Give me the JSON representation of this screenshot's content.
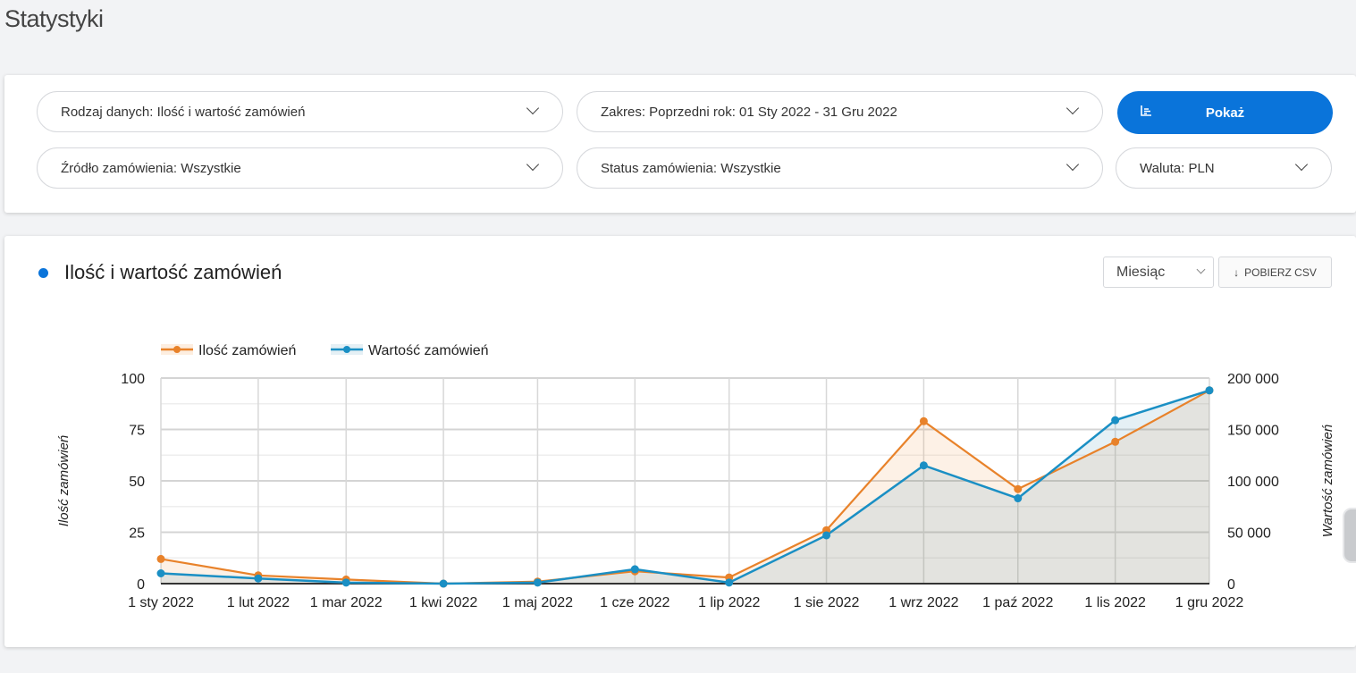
{
  "page": {
    "title": "Statystyki"
  },
  "filters": {
    "data_type": "Rodzaj danych: Ilość i wartość zamówień",
    "range": "Zakres: Poprzedni rok: 01 Sty 2022 - 31 Gru 2022",
    "source": "Źródło zamówienia: Wszystkie",
    "status": "Status zamówienia: Wszystkie",
    "currency": "Waluta: PLN",
    "show_button": "Pokaż"
  },
  "chart_card": {
    "title": "Ilość i wartość zamówień",
    "period": "Miesiąc",
    "csv_button": "POBIERZ CSV"
  },
  "colors": {
    "accent": "#0a74da",
    "count": "#e8822a",
    "value": "#1a8fc4"
  },
  "chart_data": {
    "type": "line",
    "x": [
      "1 sty 2022",
      "1 lut 2022",
      "1 mar 2022",
      "1 kwi 2022",
      "1 maj 2022",
      "1 cze 2022",
      "1 lip 2022",
      "1 sie 2022",
      "1 wrz 2022",
      "1 paź 2022",
      "1 lis 2022",
      "1 gru 2022"
    ],
    "x_day_of_year": [
      0,
      31,
      59,
      90,
      120,
      151,
      181,
      212,
      243,
      273,
      304,
      334
    ],
    "series": [
      {
        "name": "Ilość zamówień",
        "axis": "left",
        "values": [
          12,
          4,
          2,
          0,
          1,
          6,
          3,
          26,
          79,
          46,
          69,
          94
        ]
      },
      {
        "name": "Wartość zamówień",
        "axis": "right",
        "values": [
          10000,
          5000,
          1000,
          0,
          1000,
          14000,
          1000,
          47000,
          115000,
          83000,
          159000,
          188000
        ]
      }
    ],
    "ylabel": "Ilość zamówień",
    "y2label": "Wartość zamówień",
    "ylim": [
      0,
      100
    ],
    "y2lim": [
      0,
      200000
    ],
    "yticks": [
      "0",
      "25",
      "50",
      "75",
      "100"
    ],
    "y2ticks": [
      "0",
      "50 000",
      "100 000",
      "150 000",
      "200 000"
    ],
    "grid": true,
    "legend": "top-left"
  }
}
